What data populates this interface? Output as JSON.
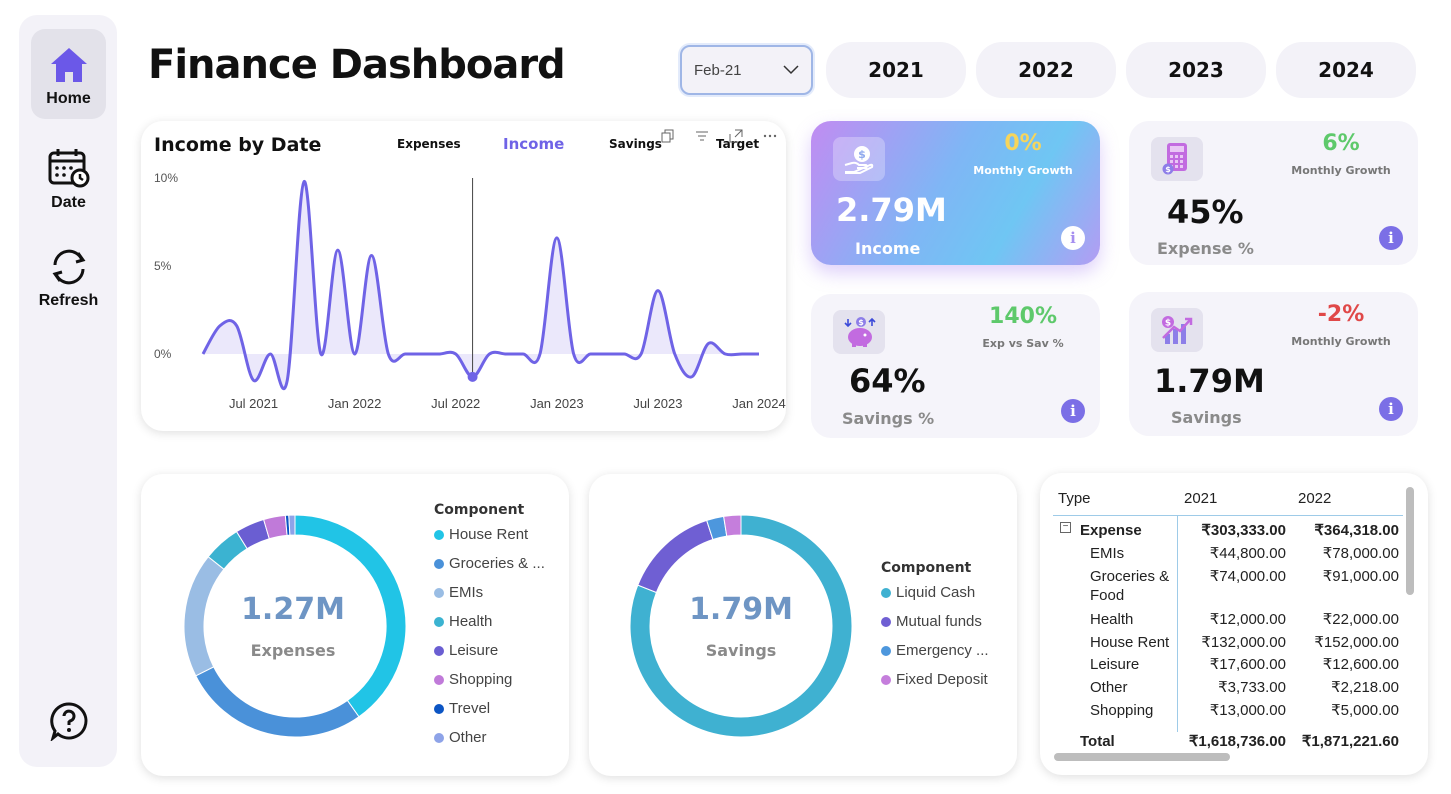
{
  "sidebar": {
    "items": [
      {
        "label": "Home",
        "icon": "home-icon"
      },
      {
        "label": "Date",
        "icon": "calendar-icon"
      },
      {
        "label": "Refresh",
        "icon": "refresh-icon"
      }
    ],
    "help_icon": "help-icon"
  },
  "header": {
    "title": "Finance Dashboard",
    "date_select": "Feb-21",
    "years": [
      "2021",
      "2022",
      "2023",
      "2024"
    ]
  },
  "line_chart": {
    "title": "Income by Date",
    "tabs": [
      "Expenses",
      "Income",
      "Savings",
      "Target"
    ],
    "active_tab": "Income",
    "accent": "#6f63e6"
  },
  "kpis": {
    "income": {
      "value": "2.79M",
      "label": "Income",
      "pct": "0%",
      "pct_color": "#f6d55c",
      "sub": "Monthly Growth"
    },
    "expense": {
      "value": "45%",
      "label": "Expense %",
      "pct": "6%",
      "pct_color": "#5ec96b",
      "sub": "Monthly Growth"
    },
    "savings_pct": {
      "value": "64%",
      "label": "Savings %",
      "pct": "140%",
      "pct_color": "#5ec96b",
      "sub": "Exp vs Sav %"
    },
    "savings": {
      "value": "1.79M",
      "label": "Savings",
      "pct": "-2%",
      "pct_color": "#e04848",
      "sub": "Monthly Growth"
    }
  },
  "expenses_donut": {
    "center_value": "1.27M",
    "center_label": "Expenses",
    "legend_title": "Component"
  },
  "savings_donut": {
    "center_value": "1.79M",
    "center_label": "Savings",
    "legend_title": "Component"
  },
  "table": {
    "headers": [
      "Type",
      "2021",
      "2022"
    ],
    "rows": [
      {
        "label": "Expense",
        "v1": "₹303,333.00",
        "v2": "₹364,318.00",
        "bold": true
      },
      {
        "label": "EMIs",
        "v1": "₹44,800.00",
        "v2": "₹78,000.00"
      },
      {
        "label": "Groceries & Food",
        "v1": "₹74,000.00",
        "v2": "₹91,000.00"
      },
      {
        "label": "Health",
        "v1": "₹12,000.00",
        "v2": "₹22,000.00"
      },
      {
        "label": "House Rent",
        "v1": "₹132,000.00",
        "v2": "₹152,000.00"
      },
      {
        "label": "Leisure",
        "v1": "₹17,600.00",
        "v2": "₹12,600.00"
      },
      {
        "label": "Other",
        "v1": "₹3,733.00",
        "v2": "₹2,218.00"
      },
      {
        "label": "Shopping",
        "v1": "₹13,000.00",
        "v2": "₹5,000.00"
      }
    ],
    "total": {
      "label": "Total",
      "v1": "₹1,618,736.00",
      "v2": "₹1,871,221.60"
    }
  },
  "chart_data": [
    {
      "type": "area",
      "title": "Income by Date",
      "x": [
        "Apr 2021",
        "May 2021",
        "Jun 2021",
        "Jul 2021",
        "Aug 2021",
        "Sep 2021",
        "Oct 2021",
        "Nov 2021",
        "Dec 2021",
        "Jan 2022",
        "Feb 2022",
        "Mar 2022",
        "Apr 2022",
        "May 2022",
        "Jun 2022",
        "Jul 2022",
        "Aug 2022",
        "Sep 2022",
        "Oct 2022",
        "Nov 2022",
        "Dec 2022",
        "Jan 2023",
        "Feb 2023",
        "Mar 2023",
        "Apr 2023",
        "May 2023",
        "Jun 2023",
        "Jul 2023",
        "Aug 2023",
        "Sep 2023",
        "Oct 2023",
        "Nov 2023",
        "Dec 2023",
        "Jan 2024"
      ],
      "y": [
        0,
        1.6,
        1.6,
        -1.5,
        0,
        -1.5,
        9.8,
        0,
        5.9,
        0,
        5.6,
        0,
        0,
        0,
        0,
        0,
        -1.3,
        0,
        0,
        0,
        0,
        6.6,
        0,
        0,
        0,
        0,
        0,
        3.6,
        0,
        -1.3,
        0.6,
        0,
        0,
        0
      ],
      "x_ticks": [
        "Jul 2021",
        "Jan 2022",
        "Jul 2022",
        "Jan 2023",
        "Jul 2023",
        "Jan 2024"
      ],
      "y_ticks": [
        "0%",
        "5%",
        "10%"
      ],
      "ylim": [
        -3,
        10
      ],
      "series_color": "#6f63e6"
    },
    {
      "type": "pie",
      "categories": [
        "House Rent",
        "Groceries & ...",
        "EMIs",
        "Health",
        "Leisure",
        "Shopping",
        "Trevel",
        "Other"
      ],
      "values": [
        40.6,
        27.6,
        18.3,
        5.5,
        4.3,
        3.2,
        0.5,
        0.9
      ],
      "colors": [
        "#21c4e6",
        "#4a91d9",
        "#9abde4",
        "#3bb3d1",
        "#6a5ed2",
        "#c07ad9",
        "#0c55c4",
        "#8ea3e8"
      ]
    },
    {
      "type": "pie",
      "categories": [
        "Liquid Cash",
        "Mutual funds",
        "Emergency ...",
        "Fixed Deposit"
      ],
      "values": [
        81,
        14,
        2.5,
        2.5
      ],
      "colors": [
        "#3fb1d1",
        "#6f5fd3",
        "#4d97dd",
        "#c57edc"
      ]
    }
  ],
  "legend_expenses": [
    "House Rent",
    "Groceries & ...",
    "EMIs",
    "Health",
    "Leisure",
    "Shopping",
    "Trevel",
    "Other"
  ],
  "legend_savings": [
    "Liquid Cash",
    "Mutual funds",
    "Emergency ...",
    "Fixed Deposit"
  ]
}
